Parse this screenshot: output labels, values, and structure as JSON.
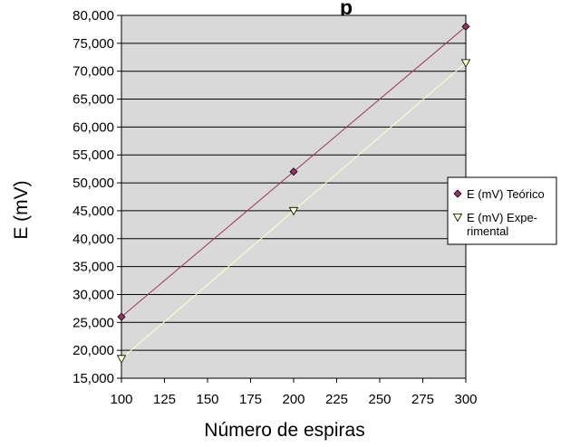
{
  "chart_data": {
    "type": "line",
    "title_partial": "p",
    "xlabel": "Número de espiras",
    "ylabel": "E (mV)",
    "x_ticks": [
      "100",
      "125",
      "150",
      "175",
      "200",
      "225",
      "250",
      "275",
      "300"
    ],
    "y_ticks": [
      "15,000",
      "20,000",
      "25,000",
      "30,000",
      "35,000",
      "40,000",
      "45,000",
      "50,000",
      "55,000",
      "60,000",
      "65,000",
      "70,000",
      "75,000",
      "80,000"
    ],
    "xlim": [
      100,
      300
    ],
    "ylim": [
      15000,
      80000
    ],
    "grid": "horizontal",
    "plot_background": "#d9d9d9",
    "legend_position": "right",
    "series": [
      {
        "name_line1": "E (mV) Teórico",
        "name_line2": "",
        "color": "#993366",
        "marker_color": "#993366",
        "marker": "diamond",
        "x": [
          100,
          200,
          300
        ],
        "y": [
          26000,
          52000,
          78000
        ]
      },
      {
        "name_line1": "E (mV) Expe-",
        "name_line2": "rimental",
        "color": "#ffffcc",
        "marker_color": "#ffffcc",
        "marker": "triangle-down",
        "x": [
          100,
          200,
          300
        ],
        "y": [
          18500,
          45000,
          71500
        ]
      }
    ]
  }
}
